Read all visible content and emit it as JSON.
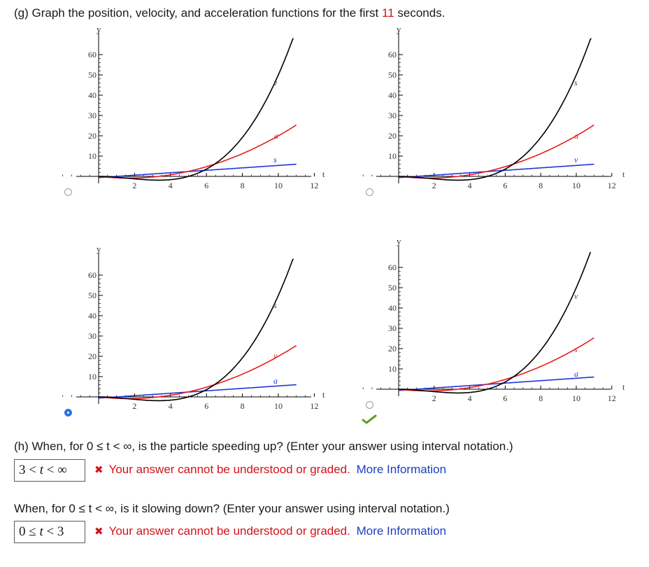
{
  "part_g": {
    "prefix": "(g) Graph the position, velocity, and acceleration functions for the first ",
    "highlight": "11",
    "suffix": " seconds."
  },
  "graphs": [
    {
      "option": "A",
      "selected": false,
      "label_black": "v",
      "label_red": "a",
      "label_blue": "s",
      "y_ticks": [
        "10",
        "20",
        "30",
        "40",
        "50",
        "60"
      ],
      "x_ticks": [
        "2",
        "4",
        "6",
        "8",
        "10",
        "12"
      ],
      "y_axis": "y",
      "x_axis": "t"
    },
    {
      "option": "B",
      "selected": false,
      "label_black": "s",
      "label_red": "a",
      "label_blue": "v",
      "y_ticks": [
        "10",
        "20",
        "30",
        "40",
        "50",
        "60"
      ],
      "x_ticks": [
        "2",
        "4",
        "6",
        "8",
        "10",
        "12"
      ],
      "y_axis": "y",
      "x_axis": "t"
    },
    {
      "option": "C",
      "selected": true,
      "label_black": "s",
      "label_red": "v",
      "label_blue": "a",
      "y_ticks": [
        "10",
        "20",
        "30",
        "40",
        "50",
        "60"
      ],
      "x_ticks": [
        "2",
        "4",
        "6",
        "8",
        "10",
        "12"
      ],
      "y_axis": "y",
      "x_axis": "t"
    },
    {
      "option": "D",
      "selected": false,
      "label_black": "v",
      "label_red": "s",
      "label_blue": "a",
      "y_ticks": [
        "10",
        "20",
        "30",
        "40",
        "50",
        "60"
      ],
      "x_ticks": [
        "2",
        "4",
        "6",
        "8",
        "10",
        "12"
      ],
      "y_axis": "y",
      "x_axis": "t"
    }
  ],
  "correct_indicator": "check-icon",
  "part_h": {
    "q1": "(h) When, for  0 ≤ t < ∞,  is the particle speeding up? (Enter your answer using interval notation.)",
    "a1": {
      "pre": "3 < ",
      "var": "t",
      "post": " < ∞"
    },
    "q2": "When, for  0 ≤ t < ∞,  is it slowing down? (Enter your answer using interval notation.)",
    "a2": {
      "pre": "0 ≤ ",
      "var": "t",
      "post": " < 3"
    },
    "error_text": "Your answer cannot be understood or graded.",
    "more_info": "More Information",
    "x_mark": "✖"
  },
  "colors": {
    "black_curve": "#000000",
    "red_curve": "#e81c1c",
    "blue_curve": "#1f36d8",
    "error": "#d3121a",
    "link": "#1c3fbf",
    "check": "#5aa02c"
  }
}
